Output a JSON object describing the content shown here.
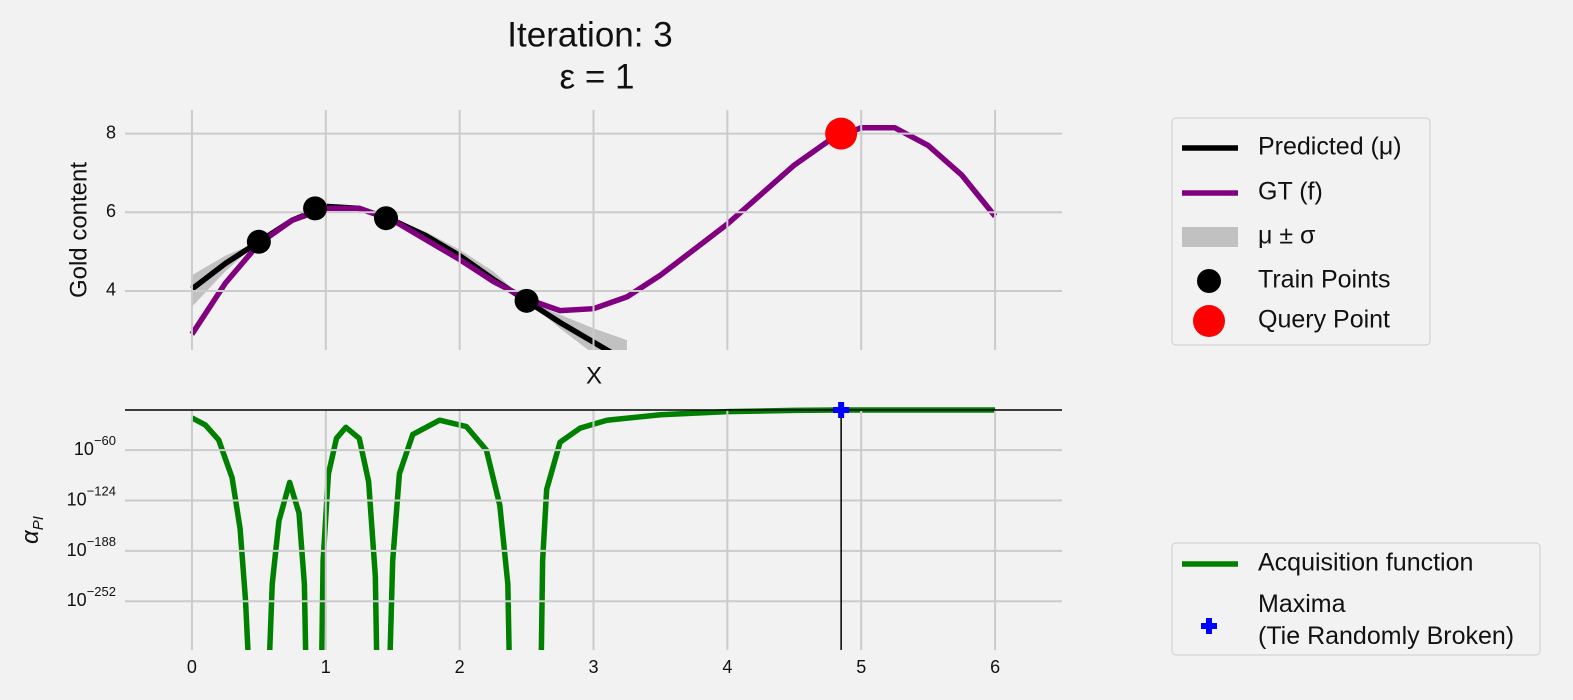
{
  "chart_data": [
    {
      "type": "line",
      "title": "Iteration: 3",
      "subtitle": "ε = 1",
      "ylabel": "Gold content",
      "xlabel": "X",
      "x": [
        0,
        0.25,
        0.5,
        0.75,
        1,
        1.25,
        1.5,
        1.75,
        2,
        2.25,
        2.5,
        2.75,
        3,
        3.25,
        3.5,
        3.75,
        4,
        4.25,
        4.5,
        4.75,
        5,
        5.25,
        5.5,
        5.75,
        6
      ],
      "xlim": [
        -0.5,
        6.5
      ],
      "xticks": [
        0,
        1,
        2,
        3,
        4,
        5,
        6
      ],
      "ylim": [
        2.5,
        8.6
      ],
      "yticks": [
        4,
        6,
        8
      ],
      "grid": true,
      "legend": "outside right",
      "series": [
        {
          "name": "Predicted (μ)",
          "color": "#000000",
          "values": [
            4.05,
            4.7,
            5.25,
            5.8,
            6.15,
            6.1,
            5.8,
            5.4,
            4.9,
            4.3,
            3.75,
            3.2,
            2.7,
            2.2,
            null,
            null,
            null,
            null,
            null,
            null,
            null,
            null,
            null,
            null,
            null
          ]
        },
        {
          "name": "GT (f)",
          "color": "#800080",
          "values": [
            2.9,
            4.2,
            5.2,
            5.8,
            6.1,
            6.1,
            5.8,
            5.3,
            4.8,
            4.25,
            3.8,
            3.5,
            3.55,
            3.85,
            4.4,
            5.05,
            5.7,
            6.45,
            7.2,
            7.8,
            8.15,
            8.15,
            7.7,
            6.95,
            5.9
          ]
        }
      ],
      "band": {
        "name": "μ ± σ",
        "color": "#a0a0a0",
        "lower": [
          3.6,
          4.5,
          5.25,
          5.75,
          6.1,
          6.05,
          5.8,
          5.3,
          4.75,
          4.15,
          3.75,
          3.05,
          2.4,
          1.8,
          null,
          null,
          null,
          null,
          null,
          null,
          null,
          null,
          null,
          null,
          null
        ],
        "upper": [
          4.4,
          4.9,
          5.25,
          5.85,
          6.2,
          6.15,
          5.85,
          5.5,
          5.05,
          4.5,
          3.75,
          3.4,
          3.05,
          2.75,
          null,
          null,
          null,
          null,
          null,
          null,
          null,
          null,
          null,
          null,
          null
        ]
      },
      "train_points": {
        "name": "Train Points",
        "color": "#000000",
        "x": [
          0.5,
          0.92,
          1.45,
          2.5
        ],
        "y": [
          5.25,
          6.1,
          5.85,
          3.75
        ]
      },
      "query_point": {
        "name": "Query Point",
        "color": "#ff0000",
        "x": [
          4.85
        ],
        "y": [
          8.0
        ]
      }
    },
    {
      "type": "line",
      "ylabel": "αPI",
      "yscale": "log",
      "x": [
        0,
        0.1,
        0.2,
        0.3,
        0.36,
        0.4,
        0.42,
        0.58,
        0.6,
        0.65,
        0.73,
        0.8,
        0.84,
        0.85,
        0.97,
        0.98,
        1.02,
        1.08,
        1.15,
        1.25,
        1.32,
        1.37,
        1.38,
        1.48,
        1.5,
        1.55,
        1.65,
        1.85,
        2.05,
        2.2,
        2.3,
        2.36,
        2.37,
        2.61,
        2.62,
        2.65,
        2.75,
        2.9,
        3.1,
        3.5,
        4,
        4.5,
        4.85,
        5.5,
        6
      ],
      "xlim": [
        -0.5,
        6.5
      ],
      "xticks": [
        0,
        1,
        2,
        3,
        4,
        5,
        6
      ],
      "ylim": [
        1e-314,
        1e-09
      ],
      "yticks": [
        {
          "value": 1e-252,
          "label": "10−252"
        },
        {
          "value": 1e-188,
          "label": "10−188"
        },
        {
          "value": 1e-124,
          "label": "10−124"
        },
        {
          "value": 1e-60,
          "label": "10−60"
        }
      ],
      "grid": true,
      "legend": "outside lower right",
      "series": [
        {
          "name": "Acquisition function",
          "color": "#008000",
          "values": [
            1e-19,
            1e-28,
            1e-47,
            1e-95,
            1e-160,
            1e-250,
            1e-320,
            1e-320,
            1e-230,
            1e-150,
            1e-101,
            1e-140,
            1e-230,
            1e-320,
            1e-320,
            1e-200,
            1e-90,
            1e-45,
            1e-31,
            1e-45,
            1e-100,
            1e-220,
            1e-320,
            1e-320,
            1e-200,
            1e-90,
            1e-40,
            1e-22,
            1e-30,
            1e-60,
            1e-130,
            1e-230,
            1e-320,
            1e-320,
            1e-200,
            1e-110,
            1e-50,
            1e-32,
            1e-22,
            1e-15,
            1e-11,
            3e-10,
            1e-09,
            1e-09,
            1e-09
          ]
        }
      ],
      "maxima": {
        "name": "Maxima\n(Tie Randomly Broken)",
        "color": "#0000ff",
        "x": 4.85,
        "y": 1e-09
      }
    }
  ]
}
